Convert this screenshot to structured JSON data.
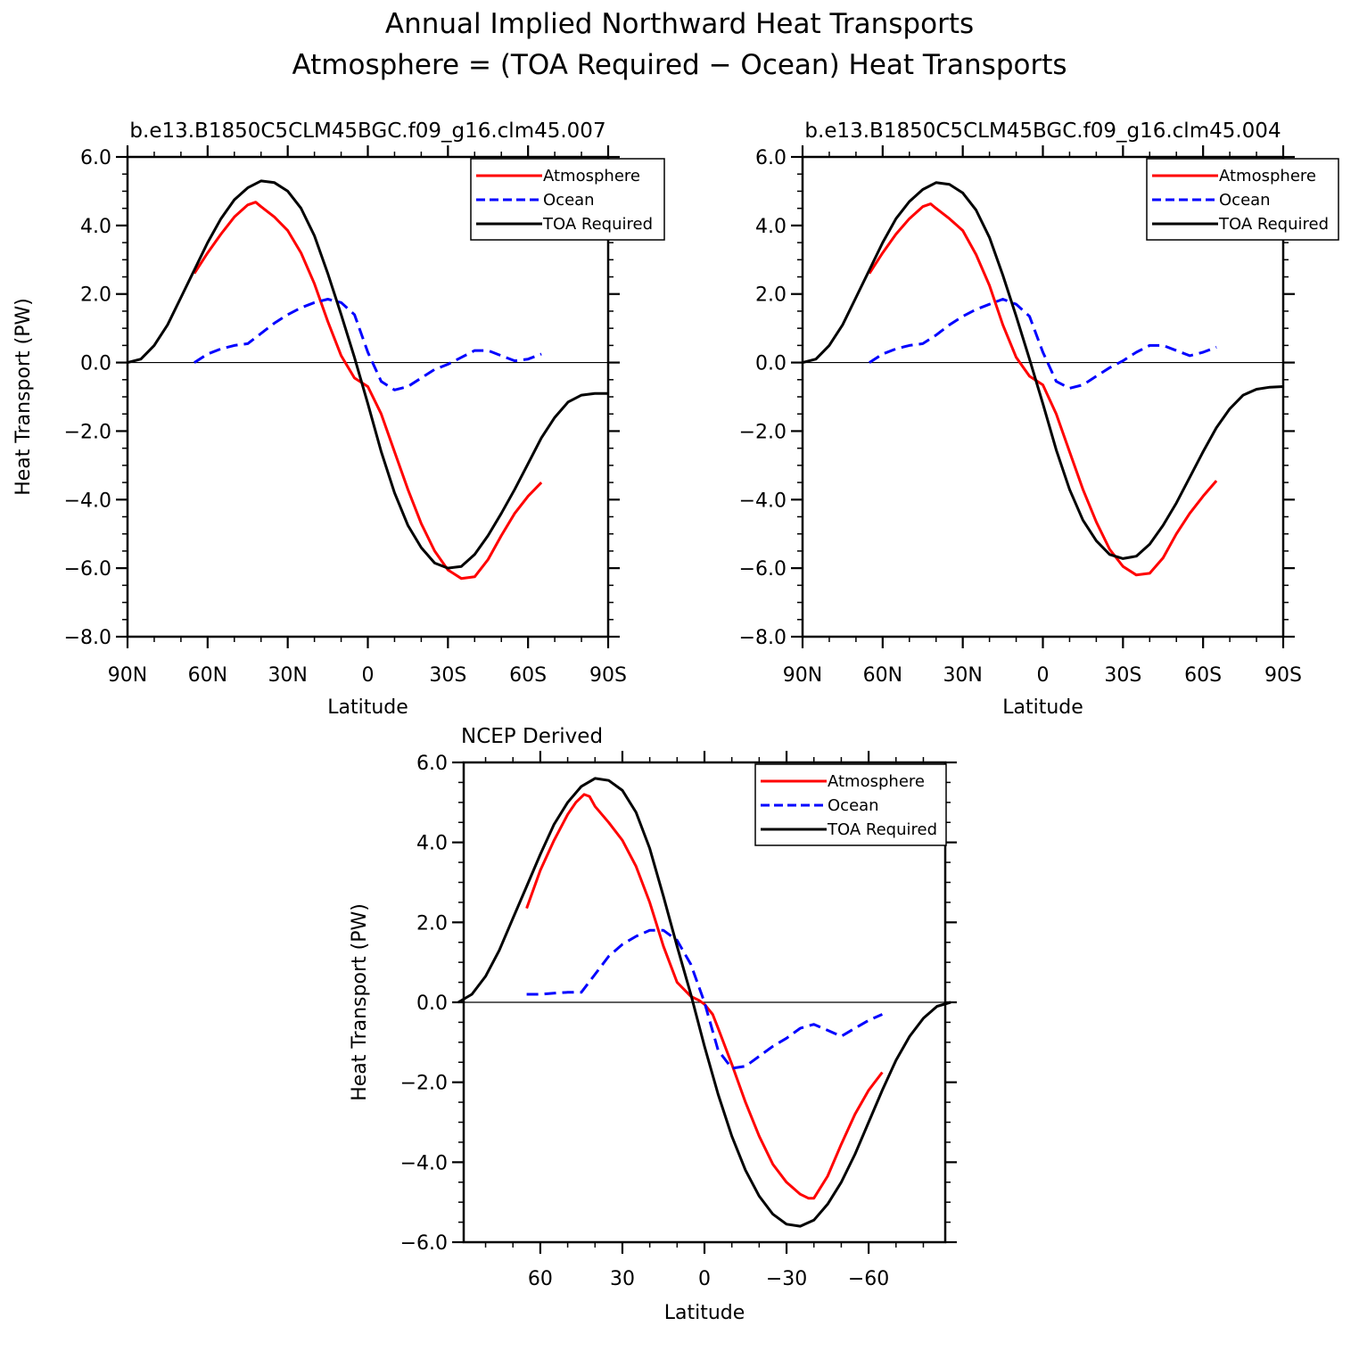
{
  "figure": {
    "title_line1": "Annual Implied Northward Heat Transports",
    "title_line2": "Atmosphere = (TOA Required − Ocean) Heat Transports"
  },
  "colors": {
    "atmosphere": "#ff0000",
    "ocean": "#0000ff",
    "toa": "#000000",
    "axes": "#000000"
  },
  "chart_data": [
    {
      "type": "line",
      "title": "b.e13.B1850C5CLM45BGC.f09_g16.clm45.007",
      "xlabel": "Latitude",
      "ylabel": "Heat Transport (PW)",
      "xlim": [
        90,
        -90
      ],
      "ylim": [
        -8,
        6
      ],
      "x_ticks": [
        90,
        60,
        30,
        0,
        -30,
        -60,
        -90
      ],
      "x_tick_labels": [
        "90N",
        "60N",
        "30N",
        "0",
        "30S",
        "60S",
        "90S"
      ],
      "y_ticks": [
        -8,
        -6,
        -4,
        -2,
        0,
        2,
        4,
        6
      ],
      "y_tick_labels": [
        "−8.0",
        "−6.0",
        "−4.0",
        "−2.0",
        "0.0",
        "2.0",
        "4.0",
        "6.0"
      ],
      "legend_position": "top-right",
      "series": [
        {
          "name": "Atmosphere",
          "style": "solid",
          "color_key": "atmosphere",
          "x": [
            65,
            60,
            55,
            50,
            45,
            42,
            40,
            35,
            30,
            25,
            20,
            15,
            10,
            5,
            0,
            -5,
            -10,
            -15,
            -20,
            -25,
            -30,
            -35,
            -40,
            -45,
            -50,
            -55,
            -60,
            -65
          ],
          "y": [
            2.6,
            3.2,
            3.75,
            4.25,
            4.6,
            4.68,
            4.55,
            4.25,
            3.85,
            3.2,
            2.3,
            1.2,
            0.2,
            -0.45,
            -0.7,
            -1.5,
            -2.6,
            -3.7,
            -4.7,
            -5.5,
            -6.05,
            -6.3,
            -6.25,
            -5.75,
            -5.05,
            -4.4,
            -3.9,
            -3.5
          ]
        },
        {
          "name": "Ocean",
          "style": "dashed",
          "color_key": "ocean",
          "x": [
            65,
            60,
            55,
            50,
            45,
            40,
            35,
            30,
            25,
            20,
            15,
            10,
            5,
            0,
            -5,
            -10,
            -15,
            -20,
            -25,
            -30,
            -35,
            -40,
            -45,
            -50,
            -55,
            -60,
            -65
          ],
          "y": [
            0.0,
            0.25,
            0.4,
            0.5,
            0.55,
            0.85,
            1.15,
            1.4,
            1.6,
            1.75,
            1.85,
            1.75,
            1.4,
            0.3,
            -0.55,
            -0.8,
            -0.7,
            -0.45,
            -0.2,
            -0.05,
            0.15,
            0.35,
            0.35,
            0.2,
            0.05,
            0.1,
            0.25
          ]
        },
        {
          "name": "TOA Required",
          "style": "solid",
          "color_key": "toa",
          "x": [
            90,
            85,
            80,
            75,
            70,
            65,
            60,
            55,
            50,
            45,
            40,
            35,
            30,
            25,
            20,
            15,
            10,
            5,
            0,
            -5,
            -10,
            -15,
            -20,
            -25,
            -30,
            -35,
            -40,
            -45,
            -50,
            -55,
            -60,
            -65,
            -70,
            -75,
            -80,
            -85,
            -90
          ],
          "y": [
            0.0,
            0.1,
            0.5,
            1.1,
            1.9,
            2.7,
            3.5,
            4.2,
            4.75,
            5.1,
            5.3,
            5.25,
            5.0,
            4.5,
            3.7,
            2.6,
            1.4,
            0.15,
            -1.2,
            -2.6,
            -3.8,
            -4.75,
            -5.4,
            -5.85,
            -6.0,
            -5.95,
            -5.6,
            -5.05,
            -4.4,
            -3.7,
            -2.95,
            -2.2,
            -1.6,
            -1.15,
            -0.95,
            -0.9,
            -0.9
          ]
        }
      ]
    },
    {
      "type": "line",
      "title": "b.e13.B1850C5CLM45BGC.f09_g16.clm45.004",
      "xlabel": "Latitude",
      "ylabel": "",
      "xlim": [
        90,
        -90
      ],
      "ylim": [
        -8,
        6
      ],
      "x_ticks": [
        90,
        60,
        30,
        0,
        -30,
        -60,
        -90
      ],
      "x_tick_labels": [
        "90N",
        "60N",
        "30N",
        "0",
        "30S",
        "60S",
        "90S"
      ],
      "y_ticks": [
        -8,
        -6,
        -4,
        -2,
        0,
        2,
        4,
        6
      ],
      "y_tick_labels": [
        "−8.0",
        "−6.0",
        "−4.0",
        "−2.0",
        "0.0",
        "2.0",
        "4.0",
        "6.0"
      ],
      "legend_position": "top-right",
      "series": [
        {
          "name": "Atmosphere",
          "style": "solid",
          "color_key": "atmosphere",
          "x": [
            65,
            60,
            55,
            50,
            45,
            42,
            40,
            35,
            30,
            25,
            20,
            15,
            10,
            5,
            0,
            -5,
            -10,
            -15,
            -20,
            -25,
            -30,
            -35,
            -40,
            -45,
            -50,
            -55,
            -60,
            -65
          ],
          "y": [
            2.6,
            3.2,
            3.75,
            4.2,
            4.55,
            4.63,
            4.5,
            4.2,
            3.85,
            3.15,
            2.25,
            1.1,
            0.15,
            -0.4,
            -0.65,
            -1.5,
            -2.6,
            -3.7,
            -4.65,
            -5.45,
            -5.95,
            -6.2,
            -6.15,
            -5.7,
            -5.0,
            -4.4,
            -3.9,
            -3.45
          ]
        },
        {
          "name": "Ocean",
          "style": "dashed",
          "color_key": "ocean",
          "x": [
            65,
            60,
            55,
            50,
            45,
            40,
            35,
            30,
            25,
            20,
            15,
            10,
            5,
            0,
            -5,
            -10,
            -15,
            -20,
            -25,
            -30,
            -35,
            -40,
            -45,
            -50,
            -55,
            -60,
            -65
          ],
          "y": [
            0.0,
            0.25,
            0.4,
            0.5,
            0.55,
            0.8,
            1.1,
            1.35,
            1.55,
            1.7,
            1.85,
            1.7,
            1.35,
            0.3,
            -0.55,
            -0.75,
            -0.65,
            -0.4,
            -0.15,
            0.05,
            0.3,
            0.5,
            0.5,
            0.35,
            0.2,
            0.3,
            0.45
          ]
        },
        {
          "name": "TOA Required",
          "style": "solid",
          "color_key": "toa",
          "x": [
            90,
            85,
            80,
            75,
            70,
            65,
            60,
            55,
            50,
            45,
            40,
            35,
            30,
            25,
            20,
            15,
            10,
            5,
            0,
            -5,
            -10,
            -15,
            -20,
            -25,
            -30,
            -35,
            -40,
            -45,
            -50,
            -55,
            -60,
            -65,
            -70,
            -75,
            -80,
            -85,
            -90
          ],
          "y": [
            0.0,
            0.1,
            0.5,
            1.1,
            1.9,
            2.7,
            3.5,
            4.2,
            4.7,
            5.05,
            5.25,
            5.2,
            4.95,
            4.45,
            3.65,
            2.55,
            1.35,
            0.1,
            -1.2,
            -2.55,
            -3.7,
            -4.6,
            -5.2,
            -5.6,
            -5.72,
            -5.65,
            -5.3,
            -4.75,
            -4.1,
            -3.35,
            -2.6,
            -1.9,
            -1.35,
            -0.95,
            -0.78,
            -0.72,
            -0.7
          ]
        }
      ]
    },
    {
      "type": "line",
      "title": "NCEP Derived",
      "xlabel": "Latitude",
      "ylabel": "Heat Transport (PW)",
      "xlim": [
        90,
        -90
      ],
      "ylim": [
        -6,
        6
      ],
      "x_ticks": [
        60,
        30,
        0,
        -30,
        -60
      ],
      "x_tick_labels": [
        "60",
        "30",
        "0",
        "−30",
        "−60"
      ],
      "y_ticks": [
        -6,
        -4,
        -2,
        0,
        2,
        4,
        6
      ],
      "y_tick_labels": [
        "−6.0",
        "−4.0",
        "−2.0",
        "0.0",
        "2.0",
        "4.0",
        "6.0"
      ],
      "legend_position": "top-right",
      "series": [
        {
          "name": "Atmosphere",
          "style": "solid",
          "color_key": "atmosphere",
          "x": [
            65,
            60,
            55,
            50,
            47,
            44,
            42,
            40,
            35,
            30,
            25,
            20,
            15,
            10,
            5,
            2,
            0,
            -3,
            -5,
            -10,
            -15,
            -20,
            -25,
            -30,
            -35,
            -38,
            -40,
            -45,
            -50,
            -55,
            -60,
            -65
          ],
          "y": [
            2.35,
            3.3,
            4.05,
            4.7,
            5.0,
            5.2,
            5.15,
            4.9,
            4.5,
            4.05,
            3.4,
            2.5,
            1.4,
            0.5,
            0.15,
            0.05,
            -0.05,
            -0.3,
            -0.65,
            -1.55,
            -2.5,
            -3.35,
            -4.05,
            -4.5,
            -4.8,
            -4.9,
            -4.9,
            -4.35,
            -3.55,
            -2.8,
            -2.2,
            -1.75
          ]
        },
        {
          "name": "Ocean",
          "style": "dashed",
          "color_key": "ocean",
          "x": [
            65,
            60,
            55,
            50,
            45,
            40,
            35,
            30,
            25,
            20,
            15,
            10,
            5,
            0,
            -5,
            -10,
            -15,
            -20,
            -25,
            -30,
            -35,
            -40,
            -45,
            -50,
            -55,
            -60,
            -65
          ],
          "y": [
            0.2,
            0.2,
            0.23,
            0.25,
            0.25,
            0.7,
            1.15,
            1.45,
            1.65,
            1.8,
            1.8,
            1.55,
            0.95,
            0.0,
            -1.2,
            -1.65,
            -1.6,
            -1.35,
            -1.1,
            -0.9,
            -0.65,
            -0.55,
            -0.7,
            -0.85,
            -0.65,
            -0.45,
            -0.3
          ]
        },
        {
          "name": "TOA Required",
          "style": "solid",
          "color_key": "toa",
          "x": [
            90,
            85,
            80,
            75,
            70,
            65,
            60,
            55,
            50,
            45,
            40,
            35,
            30,
            25,
            20,
            15,
            10,
            5,
            0,
            -5,
            -10,
            -15,
            -20,
            -25,
            -30,
            -35,
            -40,
            -45,
            -50,
            -55,
            -60,
            -65,
            -70,
            -75,
            -80,
            -85,
            -90
          ],
          "y": [
            0.0,
            0.2,
            0.65,
            1.3,
            2.1,
            2.9,
            3.7,
            4.45,
            5.0,
            5.4,
            5.6,
            5.55,
            5.3,
            4.75,
            3.85,
            2.65,
            1.4,
            0.2,
            -1.1,
            -2.3,
            -3.35,
            -4.2,
            -4.85,
            -5.3,
            -5.55,
            -5.6,
            -5.45,
            -5.05,
            -4.5,
            -3.8,
            -3.0,
            -2.2,
            -1.45,
            -0.85,
            -0.4,
            -0.1,
            0.0
          ]
        }
      ]
    }
  ]
}
